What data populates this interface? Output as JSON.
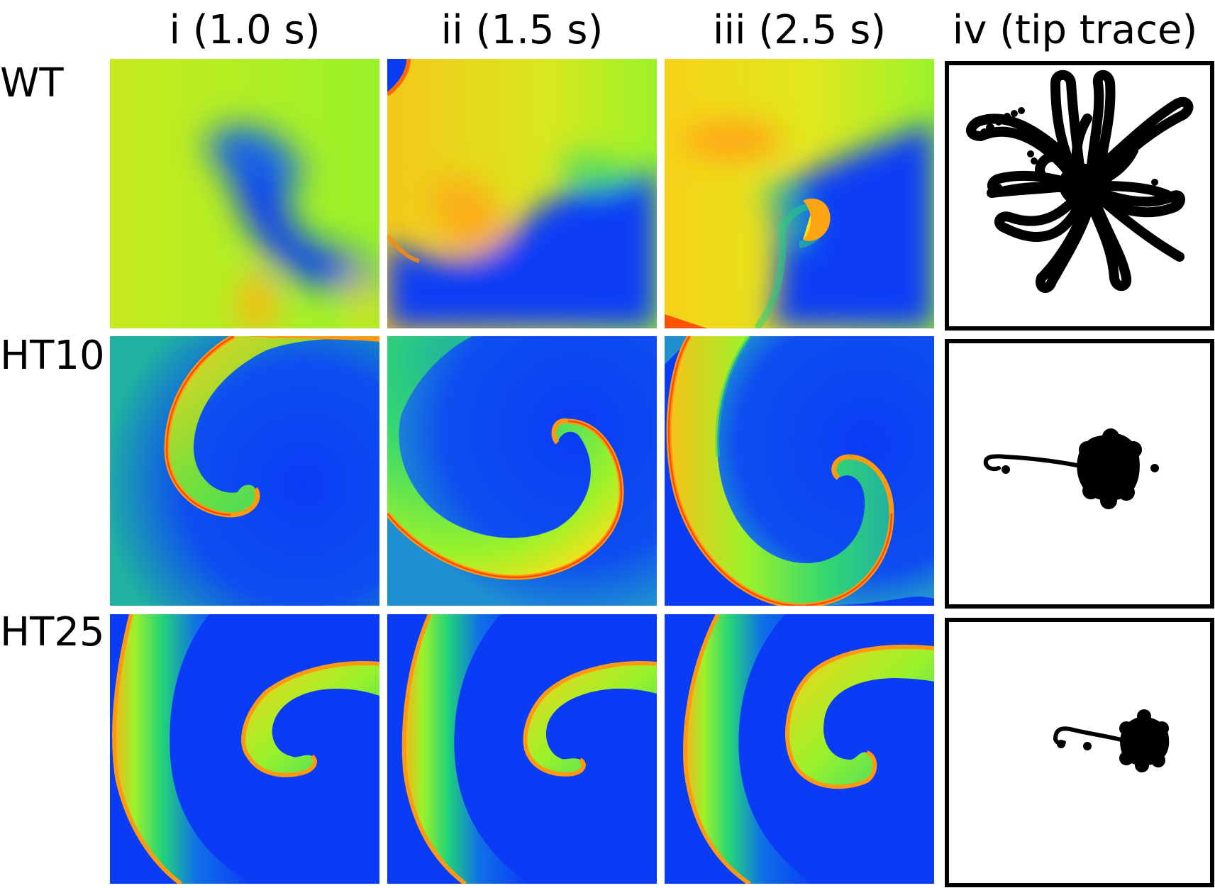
{
  "columns": [
    {
      "label": "i (1.0 s)"
    },
    {
      "label": "ii (1.5 s)"
    },
    {
      "label": "iii (2.5 s)"
    },
    {
      "label": "iv (tip trace)"
    }
  ],
  "rows": [
    {
      "label": "WT"
    },
    {
      "label": "HT10"
    },
    {
      "label": "HT25"
    }
  ],
  "colormap": {
    "low": "#0a3cf5",
    "mid": "#22d37a",
    "high_a": "#8ef52a",
    "high_b": "#f7e21a",
    "peak": "#ff9a10",
    "front": "#ff3a00"
  },
  "tip_trace_color": "#000000"
}
